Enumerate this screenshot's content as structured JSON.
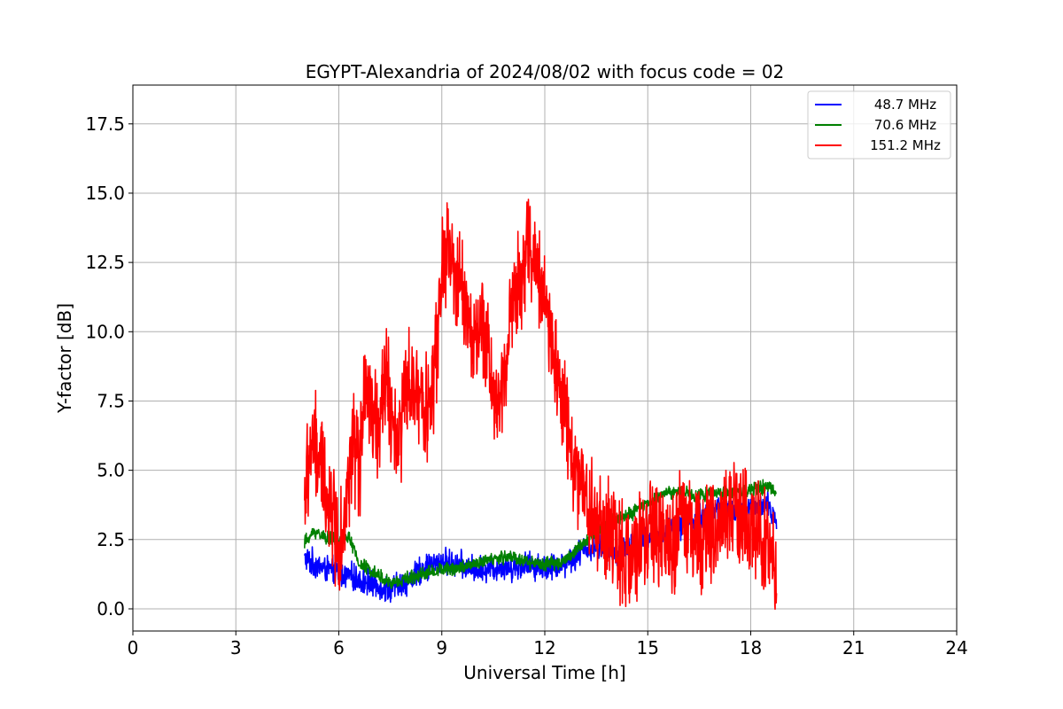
{
  "chart_data": {
    "type": "line",
    "title": "EGYPT-Alexandria of 2024/08/02 with focus code = 02",
    "xlabel": "Universal Time [h]",
    "ylabel": "Y-factor [dB]",
    "xlim": [
      0,
      24
    ],
    "ylim": [
      -0.8,
      18.9
    ],
    "xticks": [
      0,
      3,
      6,
      9,
      12,
      15,
      18,
      21,
      24
    ],
    "xtick_labels": [
      "0",
      "3",
      "6",
      "9",
      "12",
      "15",
      "18",
      "21",
      "24"
    ],
    "yticks": [
      0,
      2.5,
      5,
      7.5,
      10,
      12.5,
      15,
      17.5
    ],
    "ytick_labels": [
      "0.0",
      "2.5",
      "5.0",
      "7.5",
      "10.0",
      "12.5",
      "15.0",
      "17.5"
    ],
    "grid": true,
    "legend_position": "top-right",
    "series": [
      {
        "name": "48.7 MHz",
        "color": "#0000ff",
        "noise": 0.6,
        "x": [
          5.0,
          5.5,
          6.0,
          6.5,
          7.0,
          7.5,
          8.0,
          8.5,
          9.0,
          9.5,
          10.0,
          10.5,
          11.0,
          11.5,
          12.0,
          12.5,
          13.0,
          13.5,
          14.0,
          14.5,
          15.0,
          15.5,
          16.0,
          16.5,
          17.0,
          17.5,
          18.0,
          18.5,
          18.75
        ],
        "y": [
          1.8,
          1.5,
          1.3,
          1.1,
          0.9,
          0.7,
          1.0,
          1.5,
          1.7,
          1.6,
          1.4,
          1.5,
          1.5,
          1.6,
          1.5,
          1.6,
          2.0,
          2.3,
          2.0,
          2.2,
          2.5,
          2.8,
          3.0,
          3.3,
          3.6,
          3.5,
          3.6,
          3.7,
          3.2
        ]
      },
      {
        "name": "70.6 MHz",
        "color": "#008000",
        "noise": 0.3,
        "x": [
          5.0,
          5.3,
          5.6,
          6.0,
          6.3,
          6.6,
          7.0,
          7.5,
          8.0,
          8.5,
          9.0,
          9.5,
          10.0,
          10.5,
          11.0,
          11.5,
          12.0,
          12.5,
          13.0,
          13.5,
          14.0,
          14.5,
          15.0,
          15.5,
          16.0,
          16.5,
          17.0,
          17.5,
          18.0,
          18.5,
          18.75
        ],
        "y": [
          2.4,
          2.8,
          2.6,
          2.4,
          2.6,
          1.6,
          1.4,
          0.9,
          1.1,
          1.3,
          1.4,
          1.5,
          1.6,
          1.8,
          1.9,
          1.7,
          1.6,
          1.7,
          2.2,
          2.8,
          3.2,
          3.4,
          3.8,
          4.2,
          4.2,
          4.1,
          4.2,
          4.2,
          4.3,
          4.4,
          4.3
        ]
      },
      {
        "name": "151.2 MHz",
        "color": "#ff0000",
        "noise": 2.4,
        "x": [
          5.0,
          5.2,
          5.4,
          5.6,
          5.8,
          6.0,
          6.2,
          6.4,
          6.6,
          6.8,
          7.0,
          7.2,
          7.4,
          7.6,
          7.8,
          8.0,
          8.2,
          8.4,
          8.6,
          8.8,
          9.0,
          9.2,
          9.4,
          9.6,
          9.8,
          10.0,
          10.2,
          10.4,
          10.6,
          10.8,
          11.0,
          11.2,
          11.4,
          11.6,
          11.8,
          12.0,
          12.2,
          12.4,
          12.6,
          12.8,
          13.0,
          13.2,
          13.4,
          13.6,
          13.8,
          14.0,
          14.2,
          14.4,
          14.6,
          14.8,
          15.0,
          15.2,
          15.4,
          15.6,
          15.8,
          16.0,
          16.2,
          16.4,
          16.6,
          16.8,
          17.0,
          17.2,
          17.4,
          17.6,
          17.8,
          18.0,
          18.2,
          18.4,
          18.6,
          18.75
        ],
        "y": [
          4.0,
          6.0,
          5.5,
          4.5,
          3.5,
          2.5,
          3.5,
          6.0,
          5.0,
          8.0,
          6.5,
          7.0,
          9.0,
          6.0,
          6.5,
          8.0,
          7.5,
          8.0,
          7.0,
          8.5,
          12.0,
          13.0,
          11.5,
          12.0,
          10.0,
          9.5,
          10.0,
          9.0,
          7.0,
          8.5,
          10.5,
          11.5,
          12.5,
          13.0,
          12.0,
          11.0,
          9.5,
          8.5,
          7.0,
          5.5,
          4.5,
          4.0,
          3.5,
          3.0,
          2.8,
          2.5,
          2.0,
          1.5,
          1.8,
          2.2,
          2.5,
          3.0,
          2.5,
          2.0,
          2.5,
          3.5,
          3.0,
          2.8,
          2.5,
          2.8,
          3.0,
          3.5,
          4.0,
          3.5,
          3.0,
          3.2,
          2.8,
          2.2,
          1.8,
          1.5
        ]
      }
    ]
  }
}
